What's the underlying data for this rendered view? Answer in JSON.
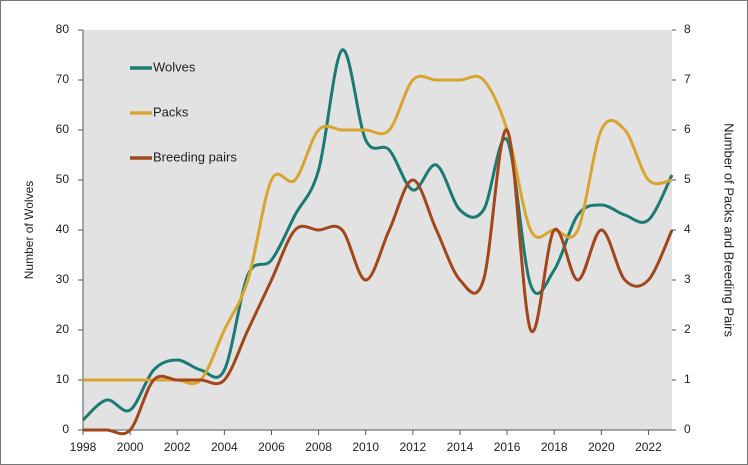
{
  "chart_data": {
    "type": "line",
    "x": [
      1998,
      1999,
      2000,
      2001,
      2002,
      2003,
      2004,
      2005,
      2006,
      2007,
      2008,
      2009,
      2010,
      2011,
      2012,
      2013,
      2014,
      2015,
      2016,
      2017,
      2018,
      2019,
      2020,
      2021,
      2022,
      2023
    ],
    "series": [
      {
        "name": "Wolves",
        "color": "#1b7a73",
        "values": [
          2,
          6,
          4,
          12,
          14,
          12,
          12,
          31,
          34,
          43,
          52,
          76,
          58,
          56,
          48,
          53,
          44,
          44,
          58,
          29,
          32,
          43,
          45,
          43,
          42,
          51
        ]
      },
      {
        "name": "Packs",
        "color": "#d9a531",
        "axis": "y2",
        "values": [
          1,
          1,
          1,
          1,
          1,
          1,
          2,
          3,
          5,
          5,
          6,
          6,
          6,
          6,
          7,
          7,
          7,
          7,
          6,
          4,
          4,
          4,
          6,
          6,
          5,
          5
        ]
      },
      {
        "name": "Breeding pairs",
        "color": "#a2461c",
        "axis": "y2",
        "values": [
          0,
          0,
          0,
          1,
          1,
          1,
          1,
          2,
          3,
          4,
          4,
          4,
          3,
          4,
          5,
          4,
          3,
          3,
          6,
          2,
          4,
          3,
          4,
          3,
          3,
          4
        ]
      }
    ],
    "ylabel": "Number of Wolves",
    "y2label": "Number of Packs and Breeding Pairs",
    "xlim": [
      1998,
      2023
    ],
    "xticks": [
      1998,
      2000,
      2002,
      2004,
      2006,
      2008,
      2010,
      2012,
      2014,
      2016,
      2018,
      2020,
      2022
    ],
    "ylim": [
      0,
      80
    ],
    "yticks": [
      0,
      10,
      20,
      30,
      40,
      50,
      60,
      70,
      80
    ],
    "y2lim": [
      0,
      8
    ],
    "y2ticks": [
      0,
      1,
      2,
      3,
      4,
      5,
      6,
      7,
      8
    ],
    "legend": "upper left",
    "smooth": true,
    "grid": false
  }
}
